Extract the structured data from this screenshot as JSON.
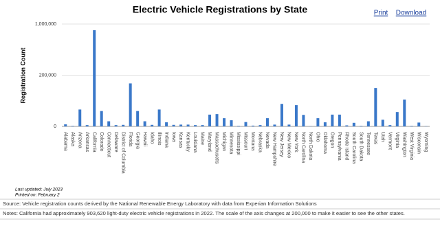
{
  "chart_data": {
    "type": "bar",
    "title": "Electric Vehicle Registrations by State",
    "y_label": "Registration Count",
    "color": "#3a78c9",
    "y_scale": "segmented",
    "grid": true,
    "categories": [
      "Alabama",
      "Alaska",
      "Arizona",
      "Arkansas",
      "California",
      "Colorado",
      "Connecticut",
      "Delaware",
      "District of Columbia",
      "Florida",
      "Georgia",
      "Hawaii",
      "Idaho",
      "Illinois",
      "Indiana",
      "Iowa",
      "Kansas",
      "Kentucky",
      "Louisiana",
      "Maine",
      "Maryland",
      "Massachusetts",
      "Michigan",
      "Minnesota",
      "Mississippi",
      "Missouri",
      "Montana",
      "Nebraska",
      "Nevada",
      "New Hampshire",
      "New Jersey",
      "New Mexico",
      "New York",
      "North Carolina",
      "North Dakota",
      "Ohio",
      "Oklahoma",
      "Oregon",
      "Pennsylvania",
      "Rhode Island",
      "South Carolina",
      "South Dakota",
      "Tennessee",
      "Texas",
      "Utah",
      "Vermont",
      "Virginia",
      "Washington",
      "West Virginia",
      "Wisconsin",
      "Wyoming"
    ],
    "values": [
      8000,
      2000,
      66000,
      5000,
      903620,
      60000,
      20000,
      5000,
      6000,
      168000,
      60000,
      20000,
      6000,
      66000,
      16000,
      6000,
      7000,
      7000,
      5000,
      5000,
      46000,
      48000,
      32000,
      24000,
      2000,
      17000,
      3000,
      5000,
      32000,
      7000,
      88000,
      7000,
      83000,
      45000,
      1000,
      32000,
      16000,
      46000,
      46000,
      4000,
      14000,
      2000,
      20000,
      150000,
      26000,
      5000,
      56000,
      105000,
      2000,
      15000,
      1000
    ],
    "ylim": [
      0,
      1000000
    ],
    "yticks": [
      0,
      {
        "value": 200000,
        "label": "200,000"
      },
      {
        "value": 1000000,
        "label": "1,000,000"
      }
    ]
  },
  "links": [
    "Print",
    "Download"
  ],
  "footer": {
    "updated": "Last updated: July 2023",
    "printed": "Printed on: February 2",
    "source": "Source: Vehicle registration counts derived by the National Renewable Energy Laboratory with data from Experian Information Solutions",
    "notes": "Notes: California had approximately 903,620 light-duty electric vehicle registrations in 2022. The scale of the axis changes at 200,000 to make it easier to see the other states."
  }
}
